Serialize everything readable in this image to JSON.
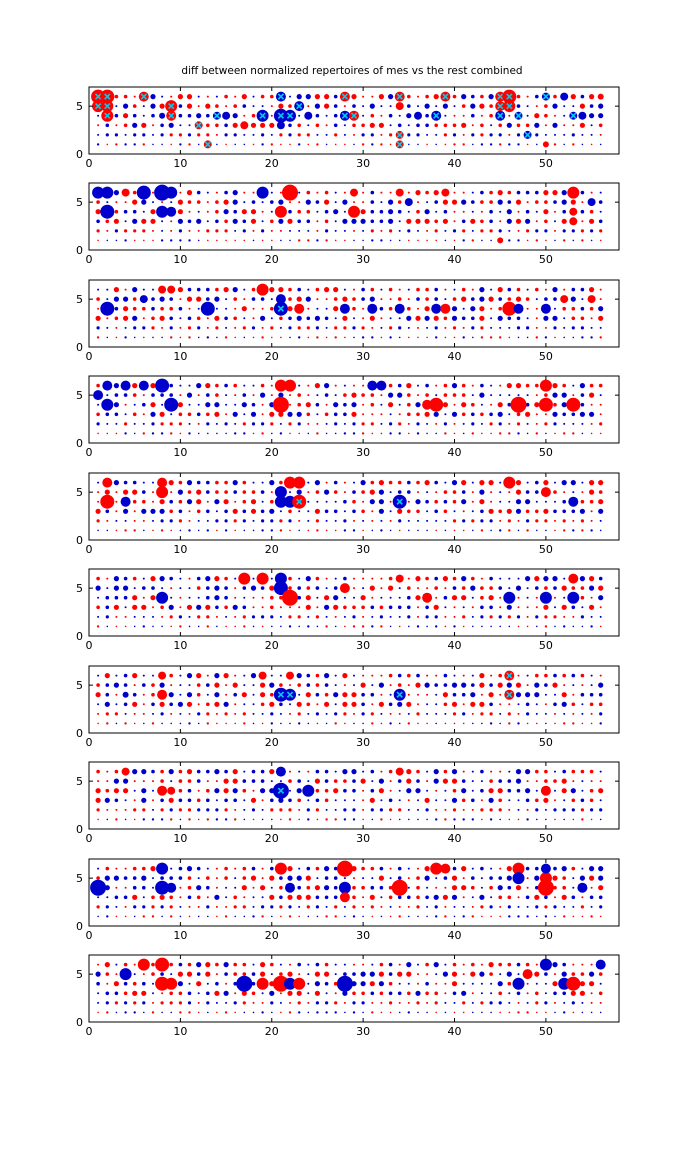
{
  "chart_data": {
    "type": "scatter",
    "subtype": "bubble-matrix",
    "title": "diff between normalized repertoires of mes vs the rest combined",
    "xlim": [
      0,
      58
    ],
    "ylim": [
      0,
      7
    ],
    "xticks": [
      0,
      10,
      20,
      30,
      40,
      50
    ],
    "yticks": [
      0,
      5
    ],
    "x_tick_labels": [
      "0",
      "10",
      "20",
      "30",
      "40",
      "50"
    ],
    "y_tick_labels": [
      "0",
      "5"
    ],
    "grid": false,
    "legend": "none",
    "colors": {
      "positive": "#ff0000",
      "negative": "#0000cc",
      "marker": "#00ccee"
    },
    "panel_count": 10,
    "panels": [
      {
        "points": [
          [
            1,
            6,
            7,
            1,
            1
          ],
          [
            2,
            6,
            7,
            1,
            1
          ],
          [
            1,
            5,
            6,
            1,
            1
          ],
          [
            2,
            5,
            6,
            1,
            1
          ],
          [
            2,
            4,
            6,
            1,
            1
          ],
          [
            6,
            6,
            5,
            1,
            1
          ],
          [
            9,
            5,
            6,
            1,
            1
          ],
          [
            9,
            4,
            5,
            1,
            1
          ],
          [
            8,
            4,
            3,
            -1,
            0
          ],
          [
            12,
            3,
            4,
            1,
            1
          ],
          [
            13,
            1,
            4,
            1,
            1
          ],
          [
            14,
            4,
            4,
            -1,
            1
          ],
          [
            15,
            4,
            4,
            -1,
            0
          ],
          [
            17,
            3,
            4,
            1,
            0
          ],
          [
            19,
            4,
            6,
            -1,
            1
          ],
          [
            21,
            6,
            5,
            -1,
            1
          ],
          [
            21,
            4,
            7,
            -1,
            1
          ],
          [
            22,
            4,
            6,
            -1,
            1
          ],
          [
            21,
            3,
            4,
            -1,
            0
          ],
          [
            23,
            5,
            5,
            -1,
            1
          ],
          [
            24,
            4,
            4,
            -1,
            0
          ],
          [
            28,
            6,
            5,
            1,
            1
          ],
          [
            28,
            4,
            5,
            -1,
            1
          ],
          [
            29,
            4,
            5,
            1,
            1
          ],
          [
            34,
            6,
            5,
            1,
            1
          ],
          [
            34,
            5,
            4,
            1,
            0
          ],
          [
            34,
            2,
            4,
            1,
            1
          ],
          [
            34,
            1,
            4,
            1,
            1
          ],
          [
            36,
            4,
            4,
            -1,
            0
          ],
          [
            38,
            4,
            5,
            -1,
            1
          ],
          [
            39,
            6,
            5,
            1,
            1
          ],
          [
            45,
            6,
            5,
            1,
            1
          ],
          [
            45,
            5,
            5,
            1,
            1
          ],
          [
            45,
            4,
            5,
            -1,
            1
          ],
          [
            46,
            6,
            7,
            1,
            1
          ],
          [
            46,
            5,
            6,
            1,
            1
          ],
          [
            47,
            4,
            4,
            -1,
            1
          ],
          [
            48,
            2,
            4,
            -1,
            1
          ],
          [
            50,
            6,
            4,
            -1,
            1
          ],
          [
            50,
            1,
            3,
            1,
            0
          ],
          [
            52,
            6,
            4,
            -1,
            0
          ],
          [
            53,
            4,
            4,
            -1,
            1
          ],
          [
            54,
            4,
            4,
            -1,
            0
          ],
          [
            56,
            6,
            3,
            1,
            0
          ]
        ]
      },
      {
        "points": [
          [
            1,
            6,
            6,
            -1,
            0
          ],
          [
            2,
            6,
            6,
            -1,
            0
          ],
          [
            2,
            4,
            7,
            -1,
            0
          ],
          [
            4,
            6,
            4,
            1,
            0
          ],
          [
            6,
            6,
            7,
            -1,
            0
          ],
          [
            8,
            6,
            8,
            -1,
            0
          ],
          [
            8,
            4,
            6,
            -1,
            0
          ],
          [
            9,
            6,
            6,
            -1,
            0
          ],
          [
            9,
            4,
            5,
            -1,
            0
          ],
          [
            19,
            6,
            6,
            -1,
            0
          ],
          [
            21,
            4,
            6,
            1,
            0
          ],
          [
            22,
            6,
            8,
            1,
            0
          ],
          [
            29,
            4,
            6,
            1,
            0
          ],
          [
            29,
            6,
            4,
            1,
            0
          ],
          [
            34,
            6,
            4,
            1,
            0
          ],
          [
            35,
            5,
            4,
            -1,
            0
          ],
          [
            39,
            6,
            4,
            1,
            0
          ],
          [
            45,
            1,
            3,
            1,
            0
          ],
          [
            53,
            6,
            6,
            1,
            0
          ],
          [
            53,
            4,
            4,
            1,
            0
          ],
          [
            53,
            3,
            4,
            1,
            0
          ],
          [
            55,
            5,
            4,
            -1,
            0
          ]
        ]
      },
      {
        "points": [
          [
            2,
            4,
            7,
            -1,
            0
          ],
          [
            6,
            5,
            4,
            -1,
            0
          ],
          [
            8,
            6,
            4,
            1,
            0
          ],
          [
            9,
            6,
            4,
            1,
            0
          ],
          [
            13,
            4,
            7,
            -1,
            0
          ],
          [
            19,
            6,
            6,
            1,
            0
          ],
          [
            21,
            4,
            7,
            -1,
            1
          ],
          [
            21,
            5,
            5,
            -1,
            0
          ],
          [
            23,
            4,
            5,
            1,
            0
          ],
          [
            28,
            4,
            5,
            -1,
            0
          ],
          [
            31,
            4,
            5,
            -1,
            0
          ],
          [
            34,
            4,
            5,
            -1,
            0
          ],
          [
            38,
            4,
            5,
            -1,
            0
          ],
          [
            39,
            4,
            5,
            1,
            0
          ],
          [
            46,
            4,
            7,
            1,
            0
          ],
          [
            47,
            4,
            5,
            -1,
            0
          ],
          [
            50,
            4,
            5,
            -1,
            0
          ],
          [
            52,
            5,
            4,
            1,
            0
          ],
          [
            55,
            5,
            4,
            1,
            0
          ]
        ]
      },
      {
        "points": [
          [
            1,
            5,
            5,
            -1,
            0
          ],
          [
            2,
            6,
            5,
            -1,
            0
          ],
          [
            2,
            4,
            6,
            -1,
            0
          ],
          [
            4,
            6,
            5,
            -1,
            0
          ],
          [
            6,
            6,
            5,
            -1,
            0
          ],
          [
            8,
            6,
            7,
            -1,
            0
          ],
          [
            9,
            4,
            7,
            -1,
            0
          ],
          [
            21,
            6,
            6,
            1,
            0
          ],
          [
            22,
            6,
            6,
            1,
            0
          ],
          [
            21,
            4,
            8,
            1,
            0
          ],
          [
            31,
            6,
            5,
            -1,
            0
          ],
          [
            32,
            6,
            5,
            -1,
            0
          ],
          [
            37,
            4,
            5,
            1,
            0
          ],
          [
            38,
            4,
            7,
            1,
            0
          ],
          [
            47,
            4,
            8,
            1,
            0
          ],
          [
            50,
            6,
            6,
            1,
            0
          ],
          [
            50,
            4,
            7,
            1,
            0
          ],
          [
            53,
            4,
            7,
            1,
            0
          ]
        ]
      },
      {
        "points": [
          [
            2,
            6,
            5,
            1,
            0
          ],
          [
            2,
            4,
            7,
            1,
            0
          ],
          [
            4,
            4,
            5,
            -1,
            0
          ],
          [
            8,
            6,
            5,
            1,
            0
          ],
          [
            8,
            5,
            6,
            1,
            0
          ],
          [
            21,
            5,
            6,
            -1,
            0
          ],
          [
            22,
            6,
            6,
            1,
            0
          ],
          [
            23,
            6,
            6,
            1,
            0
          ],
          [
            21,
            4,
            6,
            -1,
            0
          ],
          [
            22,
            4,
            6,
            -1,
            0
          ],
          [
            23,
            4,
            7,
            1,
            1
          ],
          [
            34,
            4,
            7,
            -1,
            1
          ],
          [
            46,
            6,
            6,
            1,
            0
          ],
          [
            50,
            5,
            5,
            1,
            0
          ],
          [
            53,
            4,
            5,
            -1,
            0
          ]
        ]
      },
      {
        "points": [
          [
            8,
            4,
            6,
            -1,
            0
          ],
          [
            17,
            6,
            6,
            1,
            0
          ],
          [
            19,
            6,
            6,
            1,
            0
          ],
          [
            21,
            6,
            6,
            -1,
            0
          ],
          [
            21,
            5,
            7,
            -1,
            0
          ],
          [
            22,
            4,
            8,
            1,
            0
          ],
          [
            28,
            5,
            5,
            1,
            0
          ],
          [
            34,
            6,
            4,
            1,
            0
          ],
          [
            37,
            4,
            5,
            1,
            0
          ],
          [
            46,
            4,
            6,
            -1,
            0
          ],
          [
            50,
            4,
            6,
            -1,
            0
          ],
          [
            53,
            4,
            6,
            -1,
            0
          ],
          [
            53,
            6,
            5,
            1,
            0
          ]
        ]
      },
      {
        "points": [
          [
            8,
            6,
            4,
            1,
            0
          ],
          [
            8,
            4,
            5,
            1,
            0
          ],
          [
            19,
            6,
            4,
            1,
            0
          ],
          [
            21,
            4,
            7,
            -1,
            1
          ],
          [
            22,
            4,
            6,
            -1,
            1
          ],
          [
            22,
            6,
            4,
            1,
            0
          ],
          [
            34,
            4,
            6,
            -1,
            1
          ],
          [
            46,
            6,
            5,
            1,
            1
          ],
          [
            46,
            4,
            5,
            1,
            1
          ],
          [
            4,
            4,
            3,
            -1,
            0
          ]
        ]
      },
      {
        "points": [
          [
            4,
            6,
            4,
            1,
            0
          ],
          [
            8,
            4,
            5,
            1,
            0
          ],
          [
            9,
            4,
            4,
            1,
            0
          ],
          [
            21,
            4,
            8,
            -1,
            1
          ],
          [
            24,
            4,
            6,
            -1,
            0
          ],
          [
            21,
            6,
            5,
            -1,
            0
          ],
          [
            34,
            6,
            4,
            1,
            0
          ],
          [
            50,
            4,
            5,
            1,
            0
          ]
        ]
      },
      {
        "points": [
          [
            1,
            4,
            8,
            -1,
            0
          ],
          [
            8,
            6,
            6,
            -1,
            0
          ],
          [
            8,
            4,
            7,
            -1,
            0
          ],
          [
            9,
            4,
            5,
            -1,
            0
          ],
          [
            21,
            6,
            6,
            1,
            0
          ],
          [
            22,
            4,
            5,
            -1,
            0
          ],
          [
            28,
            6,
            8,
            1,
            0
          ],
          [
            28,
            4,
            6,
            -1,
            0
          ],
          [
            28,
            3,
            5,
            1,
            0
          ],
          [
            34,
            4,
            8,
            1,
            0
          ],
          [
            38,
            6,
            6,
            1,
            0
          ],
          [
            39,
            6,
            5,
            1,
            0
          ],
          [
            47,
            6,
            6,
            1,
            0
          ],
          [
            47,
            5,
            6,
            -1,
            0
          ],
          [
            50,
            4,
            8,
            1,
            0
          ],
          [
            50,
            5,
            6,
            1,
            0
          ],
          [
            50,
            6,
            5,
            -1,
            0
          ],
          [
            54,
            4,
            5,
            -1,
            0
          ]
        ]
      },
      {
        "points": [
          [
            4,
            5,
            6,
            -1,
            0
          ],
          [
            6,
            6,
            6,
            1,
            0
          ],
          [
            8,
            6,
            7,
            1,
            0
          ],
          [
            8,
            4,
            7,
            1,
            0
          ],
          [
            9,
            4,
            6,
            1,
            0
          ],
          [
            17,
            4,
            8,
            -1,
            0
          ],
          [
            19,
            4,
            6,
            1,
            0
          ],
          [
            21,
            4,
            8,
            1,
            0
          ],
          [
            22,
            4,
            6,
            -1,
            0
          ],
          [
            23,
            4,
            6,
            1,
            0
          ],
          [
            28,
            4,
            8,
            -1,
            0
          ],
          [
            47,
            4,
            6,
            -1,
            0
          ],
          [
            48,
            5,
            5,
            1,
            0
          ],
          [
            50,
            6,
            6,
            -1,
            0
          ],
          [
            52,
            4,
            6,
            -1,
            0
          ],
          [
            53,
            4,
            7,
            1,
            0
          ],
          [
            56,
            6,
            5,
            -1,
            0
          ]
        ]
      }
    ]
  }
}
